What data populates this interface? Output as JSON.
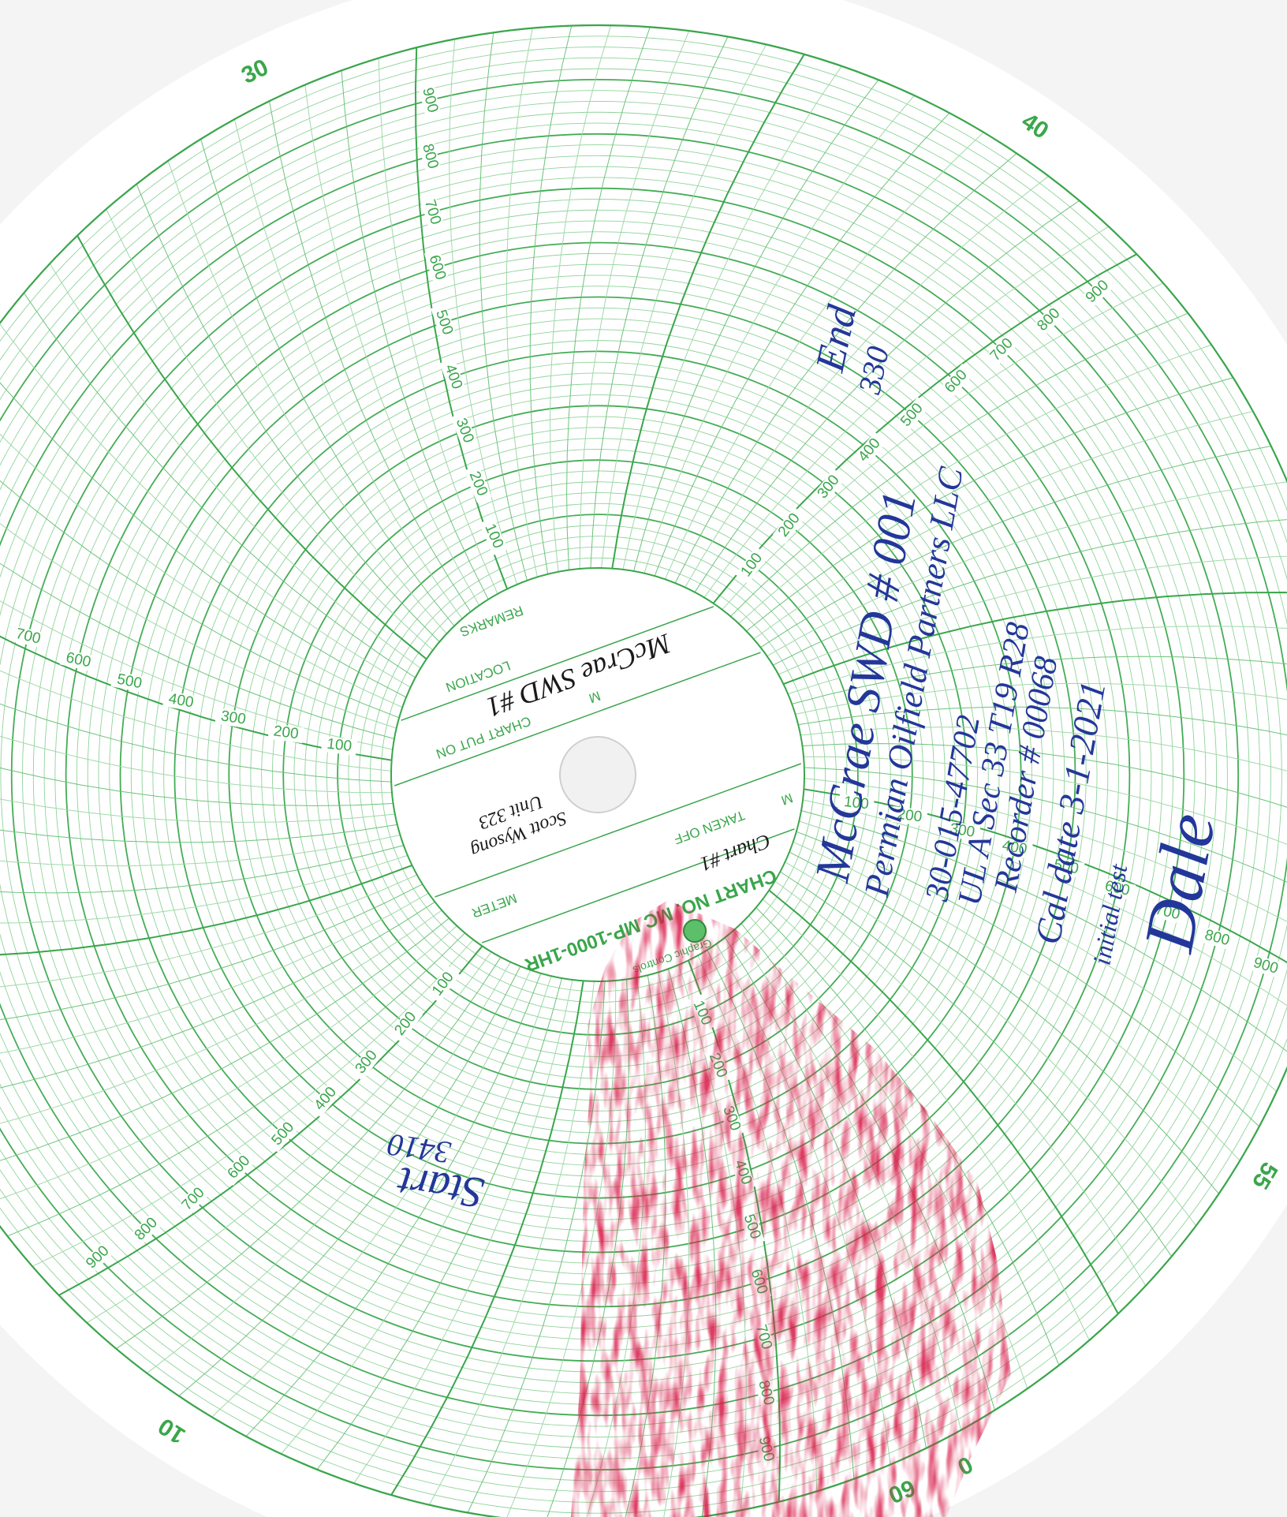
{
  "chart": {
    "number": "CHART NO. MC MP-1000-1HR",
    "fields": [
      "METER",
      "CHART PUT ON",
      "TAKEN OFF",
      "LOCATION",
      "REMARKS"
    ],
    "units": [
      "M",
      "M"
    ],
    "maker": "Graphic Controls",
    "scale_labels": [
      "100",
      "200",
      "300",
      "400",
      "500",
      "600",
      "700",
      "800",
      "900"
    ],
    "minute_labels": [
      "30",
      "40",
      "55",
      "60",
      "0",
      "10"
    ]
  },
  "handwriting": {
    "center_well": "McCrae SWD #1",
    "center_chart": "Chart #1",
    "center_name": "Scott Wysong",
    "center_unit": "Unit 323",
    "end": "End",
    "end_value": "330",
    "lines": [
      "McCrae SWD # 001",
      "Permian Oilfield Partners LLC",
      "30-015-47702",
      "UL A Sec 33 T19 R28",
      "Recorder # 00068",
      "Cal date 3-1-2021",
      "initial test"
    ],
    "signature": "Dale",
    "start": "Start",
    "start_value": "3410"
  }
}
